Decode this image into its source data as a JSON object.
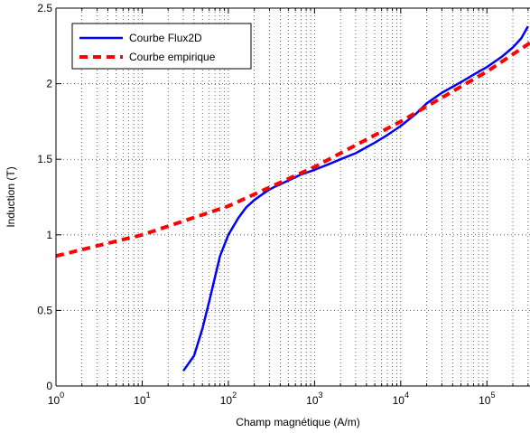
{
  "chart_data": {
    "type": "line",
    "title": "",
    "xlabel": "Champ magnétique (A/m)",
    "ylabel": "Induction (T)",
    "xscale": "log",
    "xlim": [
      1,
      316228
    ],
    "ylim": [
      0,
      2.5
    ],
    "grid": true,
    "legend_position": "top-left",
    "x_ticks": [
      {
        "value": 1,
        "base": "10",
        "exp": "0"
      },
      {
        "value": 10,
        "base": "10",
        "exp": "1"
      },
      {
        "value": 100,
        "base": "10",
        "exp": "2"
      },
      {
        "value": 1000,
        "base": "10",
        "exp": "3"
      },
      {
        "value": 10000,
        "base": "10",
        "exp": "4"
      },
      {
        "value": 100000,
        "base": "10",
        "exp": "5"
      }
    ],
    "y_ticks": [
      {
        "value": 0,
        "label": "0"
      },
      {
        "value": 0.5,
        "label": "0.5"
      },
      {
        "value": 1,
        "label": "1"
      },
      {
        "value": 1.5,
        "label": "1.5"
      },
      {
        "value": 2,
        "label": "2"
      },
      {
        "value": 2.5,
        "label": "2.5"
      }
    ],
    "series": [
      {
        "name": "Courbe Flux2D",
        "color": "#0000ff",
        "style": "solid",
        "x": [
          30,
          40,
          50,
          60,
          70,
          80,
          100,
          130,
          160,
          200,
          250,
          300,
          350,
          500,
          700,
          1000,
          1500,
          2000,
          3000,
          5000,
          7000,
          10000,
          15000,
          20000,
          30000,
          50000,
          70000,
          100000,
          150000,
          200000,
          250000,
          300000
        ],
        "y": [
          0.1,
          0.2,
          0.38,
          0.56,
          0.72,
          0.86,
          1.0,
          1.11,
          1.18,
          1.23,
          1.27,
          1.3,
          1.32,
          1.36,
          1.4,
          1.43,
          1.47,
          1.5,
          1.54,
          1.61,
          1.66,
          1.72,
          1.8,
          1.87,
          1.94,
          2.01,
          2.06,
          2.11,
          2.18,
          2.24,
          2.3,
          2.38
        ]
      },
      {
        "name": "Courbe empirique",
        "color": "#ff0000",
        "style": "dashed",
        "x": [
          1,
          10,
          100,
          1000,
          10000,
          100000,
          316228
        ],
        "y": [
          0.86,
          1.0,
          1.19,
          1.45,
          1.75,
          2.08,
          2.27
        ]
      }
    ]
  }
}
